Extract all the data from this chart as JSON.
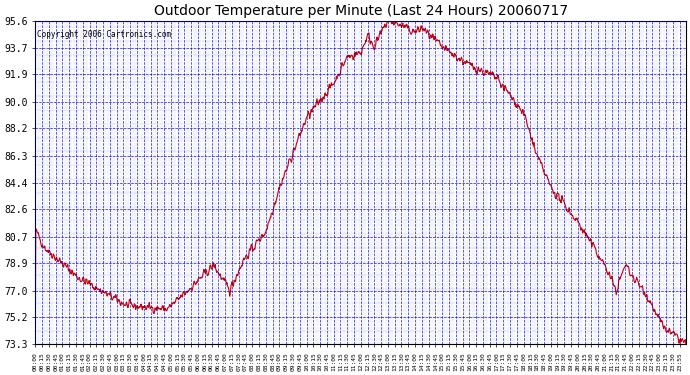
{
  "title": "Outdoor Temperature per Minute (Last 24 Hours) 20060717",
  "copyright": "Copyright 2006 Cartronics.com",
  "line_color": "#cc0000",
  "background_color": "#ffffff",
  "plot_bg_color": "#ffffff",
  "grid_color": "#0000cc",
  "text_color": "#000000",
  "title_color": "#000000",
  "ytick_labels": [
    "73.3",
    "75.2",
    "77.0",
    "78.9",
    "80.7",
    "82.6",
    "84.4",
    "86.3",
    "88.2",
    "90.0",
    "91.9",
    "93.7",
    "95.6"
  ],
  "ytick_values": [
    73.3,
    75.2,
    77.0,
    78.9,
    80.7,
    82.6,
    84.4,
    86.3,
    88.2,
    90.0,
    91.9,
    93.7,
    95.6
  ],
  "ymin": 73.3,
  "ymax": 95.6,
  "xtick_labels": [
    "00:00",
    "00:15",
    "00:30",
    "00:45",
    "01:00",
    "01:15",
    "01:30",
    "01:45",
    "02:00",
    "02:15",
    "02:30",
    "02:45",
    "03:00",
    "03:15",
    "03:30",
    "03:45",
    "04:00",
    "04:15",
    "04:30",
    "04:45",
    "05:00",
    "05:15",
    "05:30",
    "05:45",
    "06:00",
    "06:15",
    "06:30",
    "06:45",
    "07:00",
    "07:15",
    "07:30",
    "07:45",
    "08:00",
    "08:15",
    "08:30",
    "08:45",
    "09:00",
    "09:15",
    "09:30",
    "09:45",
    "10:00",
    "10:15",
    "10:30",
    "10:45",
    "11:00",
    "11:15",
    "11:30",
    "11:45",
    "12:00",
    "12:15",
    "12:30",
    "12:45",
    "13:00",
    "13:15",
    "13:30",
    "13:45",
    "14:00",
    "14:15",
    "14:30",
    "14:45",
    "15:00",
    "15:15",
    "15:30",
    "15:45",
    "16:00",
    "16:15",
    "16:30",
    "16:45",
    "17:00",
    "17:15",
    "17:30",
    "17:45",
    "18:00",
    "18:15",
    "18:30",
    "18:45",
    "19:00",
    "19:15",
    "19:30",
    "19:45",
    "20:00",
    "20:15",
    "20:30",
    "20:45",
    "21:00",
    "21:15",
    "21:30",
    "21:45",
    "22:00",
    "22:15",
    "22:30",
    "22:45",
    "23:00",
    "23:15",
    "23:30",
    "23:55"
  ]
}
